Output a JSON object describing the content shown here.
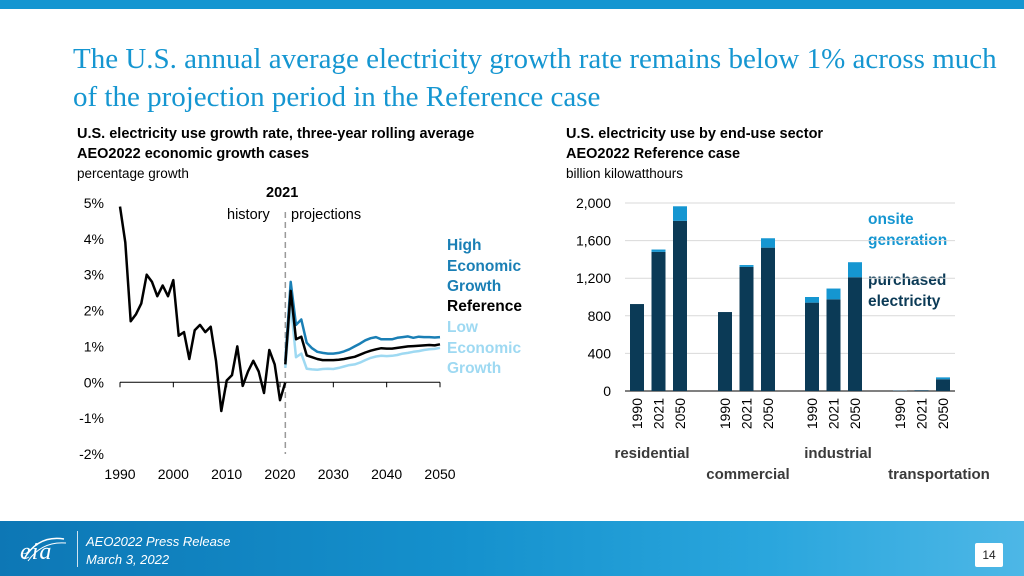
{
  "title": "The U.S. annual average electricity growth rate remains below 1% across much of the projection period in the Reference case",
  "left_chart": {
    "heading": "U.S. electricity use growth rate, three-year rolling average",
    "subheading": "AEO2022 economic growth cases",
    "units": "percentage growth",
    "divider_year": "2021",
    "history_label": "history",
    "projection_label": "projections",
    "legend": [
      {
        "label": "High Economic Growth",
        "color": "#1a7fb5"
      },
      {
        "label": "Reference",
        "color": "#000000"
      },
      {
        "label": "Low Economic Growth",
        "color": "#9ed9f2"
      }
    ]
  },
  "right_chart": {
    "heading": "U.S. electricity use by end-use sector",
    "subheading": "AEO2022 Reference case",
    "units": "billion kilowatthours",
    "legend": [
      {
        "label": "onsite generation",
        "color": "#1596d1"
      },
      {
        "label": "purchased electricity",
        "color": "#0b3a56"
      }
    ]
  },
  "chart_data": [
    {
      "type": "line",
      "title": "U.S. electricity use growth rate, three-year rolling average",
      "ylabel": "percentage growth",
      "xlim": [
        1990,
        2050
      ],
      "ylim": [
        -2,
        5
      ],
      "xticks": [
        "1990",
        "2000",
        "2010",
        "2020",
        "2030",
        "2040",
        "2050"
      ],
      "yticks": [
        "5%",
        "4%",
        "3%",
        "2%",
        "1%",
        "0%",
        "-1%",
        "-2%"
      ],
      "history": {
        "name": "History",
        "color": "#000000",
        "x": [
          1990,
          1991,
          1992,
          1993,
          1994,
          1995,
          1996,
          1997,
          1998,
          1999,
          2000,
          2001,
          2002,
          2003,
          2004,
          2005,
          2006,
          2007,
          2008,
          2009,
          2010,
          2011,
          2012,
          2013,
          2014,
          2015,
          2016,
          2017,
          2018,
          2019,
          2020,
          2021
        ],
        "y": [
          4.9,
          3.9,
          1.7,
          1.9,
          2.2,
          3.0,
          2.8,
          2.4,
          2.7,
          2.4,
          2.85,
          1.3,
          1.4,
          0.65,
          1.45,
          1.6,
          1.4,
          1.55,
          0.6,
          -0.8,
          0.05,
          0.2,
          1.0,
          -0.1,
          0.3,
          0.6,
          0.3,
          -0.3,
          0.9,
          0.5,
          -0.5,
          0.0
        ]
      },
      "series": [
        {
          "name": "High Economic Growth",
          "color": "#1a7fb5",
          "x": [
            2021,
            2022,
            2023,
            2024,
            2025,
            2026,
            2027,
            2028,
            2029,
            2030,
            2031,
            2032,
            2033,
            2034,
            2035,
            2036,
            2037,
            2038,
            2039,
            2040,
            2041,
            2042,
            2043,
            2044,
            2045,
            2046,
            2047,
            2048,
            2049,
            2050
          ],
          "y": [
            0.6,
            2.8,
            1.6,
            1.75,
            1.1,
            0.95,
            0.85,
            0.82,
            0.8,
            0.8,
            0.82,
            0.86,
            0.92,
            1.0,
            1.08,
            1.17,
            1.23,
            1.26,
            1.2,
            1.2,
            1.2,
            1.24,
            1.26,
            1.28,
            1.24,
            1.27,
            1.26,
            1.26,
            1.25,
            1.26
          ]
        },
        {
          "name": "Reference",
          "color": "#000000",
          "x": [
            2021,
            2022,
            2023,
            2024,
            2025,
            2026,
            2027,
            2028,
            2029,
            2030,
            2031,
            2032,
            2033,
            2034,
            2035,
            2036,
            2037,
            2038,
            2039,
            2040,
            2041,
            2042,
            2043,
            2044,
            2045,
            2046,
            2047,
            2048,
            2049,
            2050
          ],
          "y": [
            0.5,
            2.55,
            1.2,
            1.27,
            0.75,
            0.7,
            0.65,
            0.62,
            0.62,
            0.62,
            0.63,
            0.65,
            0.68,
            0.71,
            0.77,
            0.83,
            0.88,
            0.92,
            0.95,
            0.94,
            0.94,
            0.96,
            0.98,
            1.0,
            1.01,
            1.02,
            1.03,
            1.04,
            1.03,
            1.06
          ]
        },
        {
          "name": "Low Economic Growth",
          "color": "#9ed9f2",
          "x": [
            2021,
            2022,
            2023,
            2024,
            2025,
            2026,
            2027,
            2028,
            2029,
            2030,
            2031,
            2032,
            2033,
            2034,
            2035,
            2036,
            2037,
            2038,
            2039,
            2040,
            2041,
            2042,
            2043,
            2044,
            2045,
            2046,
            2047,
            2048,
            2049,
            2050
          ],
          "y": [
            0.4,
            2.2,
            0.7,
            0.8,
            0.38,
            0.36,
            0.35,
            0.37,
            0.38,
            0.37,
            0.4,
            0.44,
            0.48,
            0.5,
            0.55,
            0.62,
            0.68,
            0.72,
            0.74,
            0.73,
            0.74,
            0.76,
            0.8,
            0.82,
            0.85,
            0.87,
            0.9,
            0.92,
            0.93,
            0.96
          ]
        }
      ],
      "divider_x": 2021
    },
    {
      "type": "bar",
      "stacked": true,
      "title": "U.S. electricity use by end-use sector",
      "ylabel": "billion kilowatthours",
      "ylim": [
        0,
        2000
      ],
      "yticks": [
        "0",
        "400",
        "800",
        "1,200",
        "1,600",
        "2,000"
      ],
      "groups": [
        {
          "name": "residential",
          "years": [
            "1990",
            "2021",
            "2050"
          ],
          "purchased": [
            925,
            1480,
            1810
          ],
          "onsite": [
            0,
            25,
            155
          ]
        },
        {
          "name": "commercial",
          "years": [
            "1990",
            "2021",
            "2050"
          ],
          "purchased": [
            840,
            1320,
            1525
          ],
          "onsite": [
            0,
            20,
            100
          ]
        },
        {
          "name": "industrial",
          "years": [
            "1990",
            "2021",
            "2050"
          ],
          "purchased": [
            940,
            975,
            1210
          ],
          "onsite": [
            60,
            115,
            160
          ]
        },
        {
          "name": "transportation",
          "years": [
            "1990",
            "2021",
            "2050"
          ],
          "purchased": [
            5,
            8,
            125
          ],
          "onsite": [
            0,
            0,
            20
          ]
        }
      ],
      "series": [
        {
          "name": "purchased electricity",
          "color": "#0b3a56"
        },
        {
          "name": "onsite generation",
          "color": "#1596d1"
        }
      ]
    }
  ],
  "footer": {
    "logo_text": "eia",
    "line1": "AEO2022 Press Release",
    "line2": "March 3, 2022",
    "page_number": "14"
  }
}
